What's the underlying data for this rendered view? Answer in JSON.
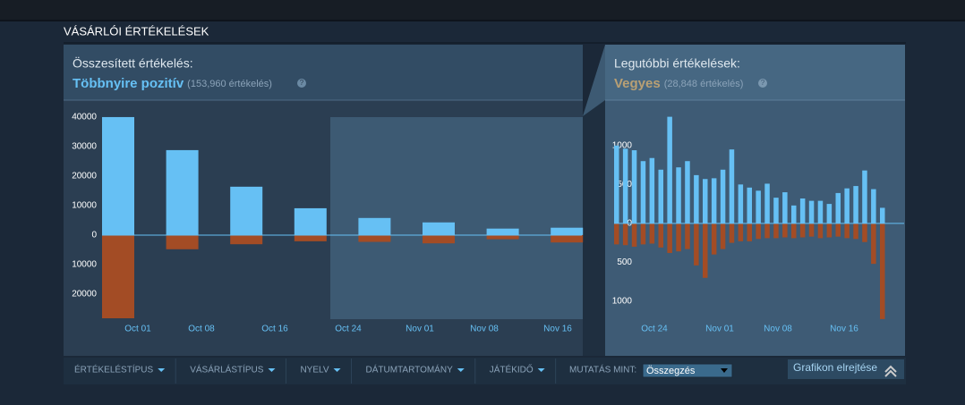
{
  "header": {
    "title": "VÁSÁRLÓI ÉRTÉKELÉSEK"
  },
  "panels": [
    {
      "label": "Összesített értékelés:",
      "rating": "Többnyire pozitív",
      "count": "(153,960 értékelés)"
    },
    {
      "label": "Legutóbbi értékelések:",
      "rating": "Vegyes",
      "count": "(28,848 értékelés)"
    }
  ],
  "chart_data": [
    {
      "type": "bar",
      "stacked": true,
      "ylim": [
        -28500,
        41500
      ],
      "yticks": [
        40000,
        30000,
        20000,
        10000,
        0,
        {
          "value": -10000,
          "label": "10000"
        },
        {
          "value": -20000,
          "label": "20000"
        }
      ],
      "xtick_labels": [
        "Oct 01",
        "Oct 08",
        "Oct 16",
        "Oct 24",
        "Nov 01",
        "Nov 08",
        "Nov 16"
      ],
      "series": [
        {
          "color": "#66c0f4",
          "values": [
            40000,
            28800,
            16400,
            9100,
            5800,
            4300,
            2200,
            2500
          ]
        },
        {
          "color": "#a34c25",
          "values": [
            -28200,
            -4800,
            -3100,
            -2100,
            -2300,
            -2800,
            -1400,
            -2500
          ]
        }
      ]
    },
    {
      "type": "bar",
      "stacked": true,
      "ylim": [
        -1300,
        1400
      ],
      "yticks": [
        1000,
        500,
        0,
        {
          "value": -500,
          "label": "500"
        },
        {
          "value": -1000,
          "label": "1000"
        }
      ],
      "xtick_labels": [
        "Oct 24",
        "Nov 01",
        "Nov 08",
        "Nov 16"
      ],
      "series": [
        {
          "color": "#66c0f4",
          "values": [
            1000,
            960,
            940,
            800,
            840,
            690,
            1370,
            720,
            800,
            620,
            570,
            580,
            690,
            950,
            500,
            460,
            420,
            510,
            330,
            400,
            230,
            320,
            290,
            290,
            250,
            390,
            450,
            480,
            680,
            440,
            200
          ]
        },
        {
          "color": "#a34c25",
          "values": [
            -270,
            -280,
            -300,
            -270,
            -260,
            -310,
            -380,
            -360,
            -330,
            -540,
            -700,
            -400,
            -330,
            -250,
            -230,
            -230,
            -200,
            -190,
            -190,
            -180,
            -190,
            -180,
            -170,
            -190,
            -180,
            -170,
            -190,
            -200,
            -240,
            -520,
            -1230
          ]
        }
      ]
    }
  ],
  "filters": [
    "ÉRTÉKELÉSTÍPUS",
    "VÁSÁRLÁSTÍPUS",
    "NYELV",
    "DÁTUMTARTOMÁNY",
    "JÁTÉKIDŐ"
  ],
  "display": {
    "label": "MUTATÁS MINT:",
    "value": "Összegzés",
    "hide": "Grafikon elrejtése"
  }
}
